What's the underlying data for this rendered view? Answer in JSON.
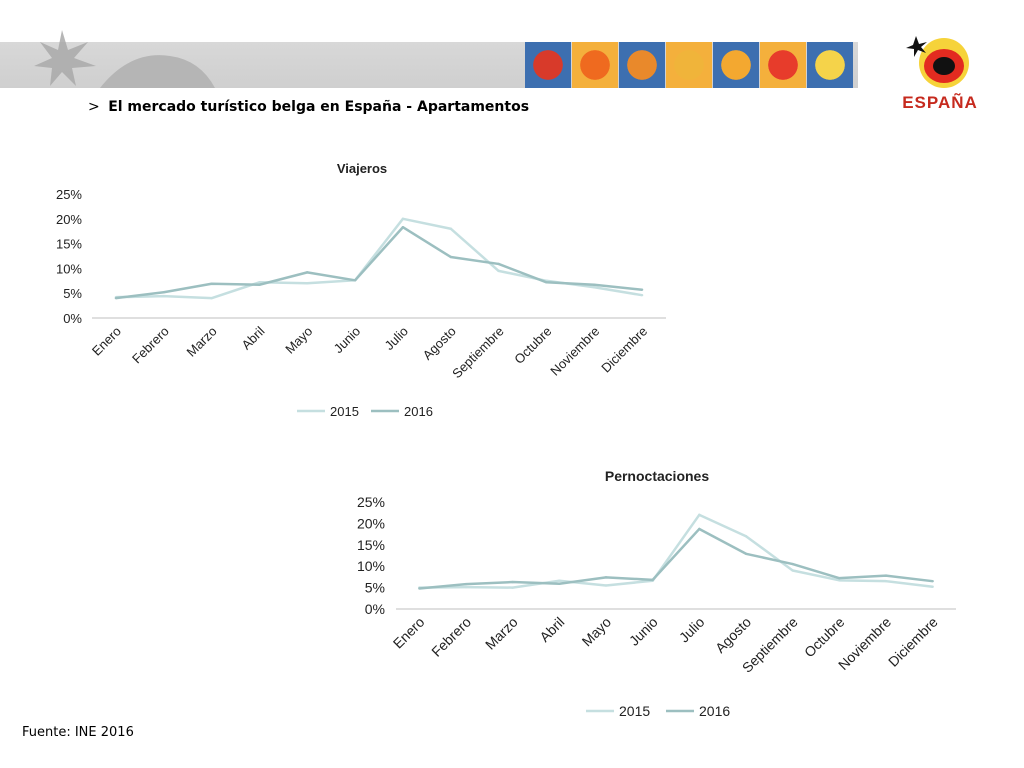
{
  "header": {
    "arrow": ">",
    "title": "El mercado turístico belga en España - Apartamentos"
  },
  "brand": {
    "logo_name": "espana-logo-icon",
    "logo_text": "ESPAÑA",
    "tile_colors": [
      "#d83a2a",
      "#ef6a1f",
      "#e9892b",
      "#f0b43a",
      "#f3a830",
      "#e73c2b",
      "#f5d34a"
    ]
  },
  "source": "Fuente: INE 2016",
  "chart_data": [
    {
      "type": "line",
      "title": "Viajeros",
      "categories": [
        "Enero",
        "Febrero",
        "Marzo",
        "Abril",
        "Mayo",
        "Junio",
        "Julio",
        "Agosto",
        "Septiembre",
        "Octubre",
        "Noviembre",
        "Diciembre"
      ],
      "series": [
        {
          "name": "2015",
          "color": "#c5dfe0",
          "values": [
            4.2,
            4.4,
            4.0,
            7.2,
            7.0,
            7.6,
            20.0,
            18.0,
            9.5,
            7.5,
            6.2,
            4.6
          ]
        },
        {
          "name": "2016",
          "color": "#9cbfc0",
          "values": [
            4.0,
            5.2,
            6.9,
            6.7,
            9.2,
            7.6,
            18.3,
            12.3,
            10.9,
            7.2,
            6.7,
            5.7
          ]
        }
      ],
      "y_ticks": [
        "0%",
        "5%",
        "10%",
        "15%",
        "20%",
        "25%"
      ],
      "ylim": [
        0,
        25
      ],
      "legend_position": "bottom"
    },
    {
      "type": "line",
      "title": "Pernoctaciones",
      "categories": [
        "Enero",
        "Febrero",
        "Marzo",
        "Abril",
        "Mayo",
        "Junio",
        "Julio",
        "Agosto",
        "Septiembre",
        "Octubre",
        "Noviembre",
        "Diciembre"
      ],
      "series": [
        {
          "name": "2015",
          "color": "#c5dfe0",
          "values": [
            5.0,
            5.1,
            5.0,
            6.6,
            5.5,
            6.6,
            22.0,
            17.0,
            9.0,
            6.7,
            6.5,
            5.2
          ]
        },
        {
          "name": "2016",
          "color": "#9cbfc0",
          "values": [
            4.8,
            5.8,
            6.3,
            5.9,
            7.4,
            6.8,
            18.7,
            12.9,
            10.5,
            7.2,
            7.8,
            6.5
          ]
        }
      ],
      "y_ticks": [
        "0%",
        "5%",
        "10%",
        "15%",
        "20%",
        "25%"
      ],
      "ylim": [
        0,
        25
      ],
      "legend_position": "bottom"
    }
  ]
}
